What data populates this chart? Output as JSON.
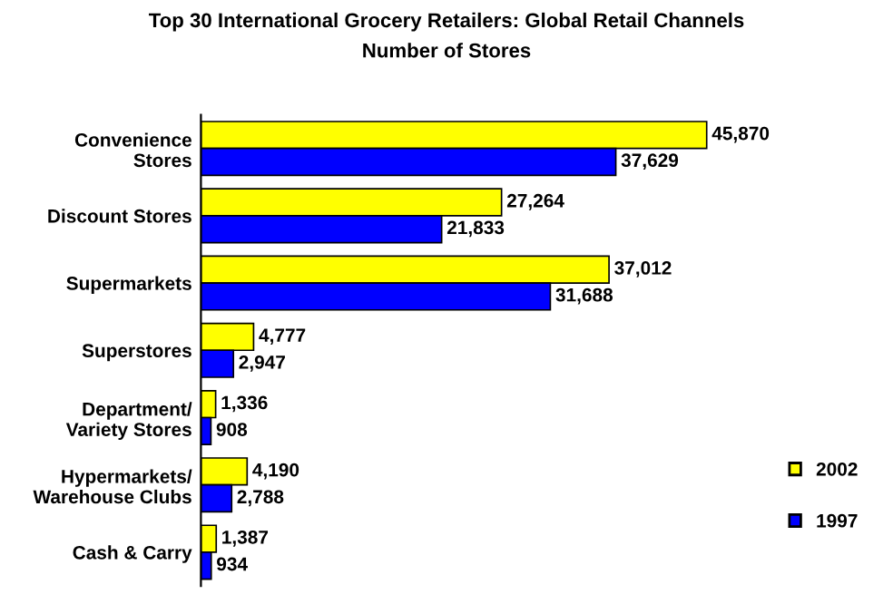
{
  "chart_data": {
    "type": "bar",
    "orientation": "horizontal",
    "title": "Top 30 International Grocery Retailers: Global Retail Channels",
    "subtitle": "Number of Stores",
    "categories": [
      "Convenience\nStores",
      "Discount Stores",
      "Supermarkets",
      "Superstores",
      "Department/\nVariety Stores",
      "Hypermarkets/\nWarehouse Clubs",
      "Cash & Carry"
    ],
    "series": [
      {
        "name": "2002",
        "color": "#ffff00",
        "values": [
          45870,
          27264,
          37012,
          4777,
          1336,
          4190,
          1387
        ],
        "value_labels": [
          "45,870",
          "27,264",
          "37,012",
          "4,777",
          "1,336",
          "4,190",
          "1,387"
        ]
      },
      {
        "name": "1997",
        "color": "#0000ff",
        "values": [
          37629,
          21833,
          31688,
          2947,
          908,
          2788,
          934
        ],
        "value_labels": [
          "37,629",
          "21,833",
          "31,688",
          "2,947",
          "908",
          "2,788",
          "934"
        ]
      }
    ],
    "legend": "right",
    "grid": false,
    "tick_labels": "y"
  }
}
